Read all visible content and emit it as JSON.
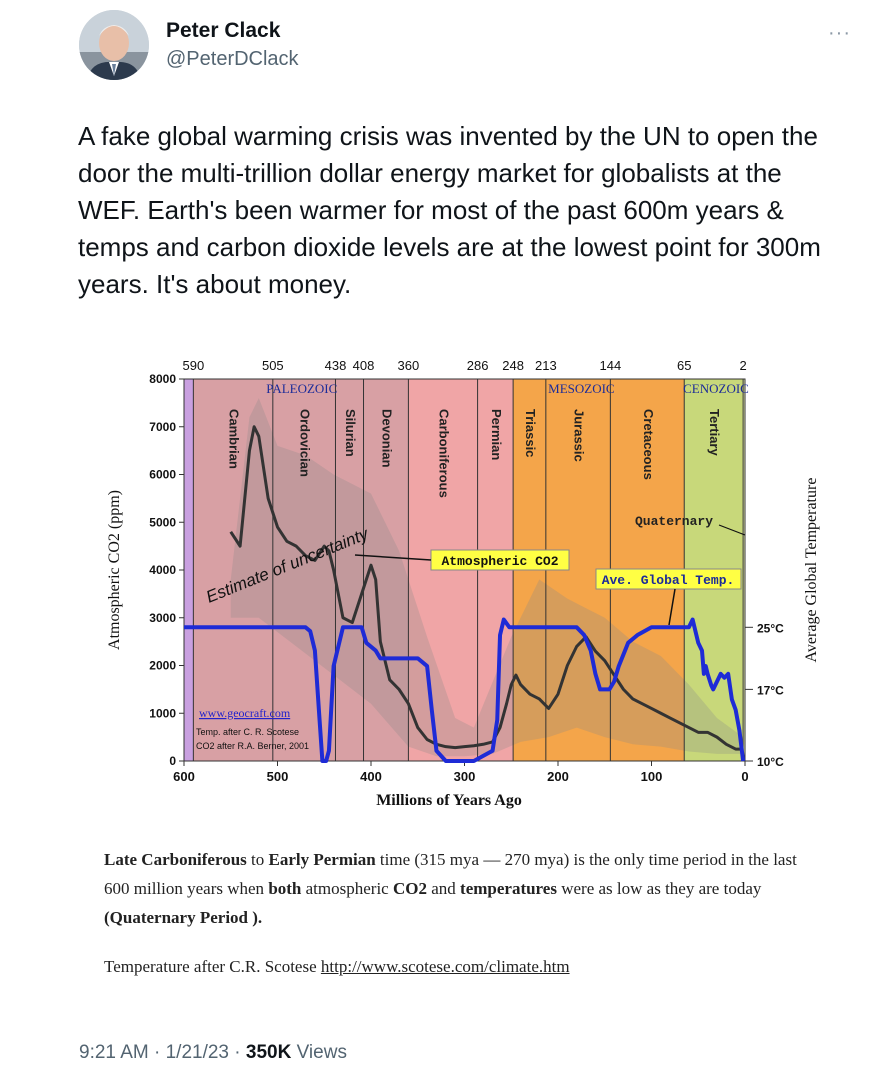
{
  "author": {
    "name": "Peter Clack",
    "handle": "@PeterDClack"
  },
  "more_label": "···",
  "tweet": {
    "text": "A fake global warming crisis was invented by the UN to open the door the multi-trillion dollar energy market for globalists at the WEF. Earth's been warmer for most of the past 600m years & temps and carbon dioxide levels are at the lowest point for 300m years. It's about money."
  },
  "chart_data": {
    "type": "line",
    "xlabel": "Millions of Years Ago",
    "ylabel": "Atmospheric CO2 (ppm)",
    "ylabel_right": "Average Global Temperature",
    "xlim": [
      600,
      0
    ],
    "ylim": [
      0,
      8000
    ],
    "x_ticks": [
      600,
      500,
      400,
      300,
      200,
      100,
      0
    ],
    "y_ticks": [
      0,
      1000,
      2000,
      3000,
      4000,
      5000,
      6000,
      7000,
      8000
    ],
    "top_ticks": [
      "590",
      "505",
      "438",
      "408",
      "360",
      "286",
      "248",
      "213",
      "144",
      "65",
      "2"
    ],
    "right_ticks": [
      "25°C",
      "17°C",
      "10°C"
    ],
    "eras": [
      "PALEOZOIC",
      "MESOZOIC",
      "CENOZOIC"
    ],
    "periods": [
      {
        "name": "Cambrian",
        "start": 590,
        "end": 505,
        "color": "#d8a0a4"
      },
      {
        "name": "Ordovician",
        "start": 505,
        "end": 438,
        "color": "#d8a0a4"
      },
      {
        "name": "Silurian",
        "start": 438,
        "end": 408,
        "color": "#d8a0a4"
      },
      {
        "name": "Devonian",
        "start": 408,
        "end": 360,
        "color": "#d8a0a4"
      },
      {
        "name": "Carboniferous",
        "start": 360,
        "end": 286,
        "color": "#f0a5a6"
      },
      {
        "name": "Permian",
        "start": 286,
        "end": 248,
        "color": "#f0a5a6"
      },
      {
        "name": "Triassic",
        "start": 248,
        "end": 213,
        "color": "#f4a54a"
      },
      {
        "name": "Jurassic",
        "start": 213,
        "end": 144,
        "color": "#f4a54a"
      },
      {
        "name": "Cretaceous",
        "start": 144,
        "end": 65,
        "color": "#f4a54a"
      },
      {
        "name": "Tertiary",
        "start": 65,
        "end": 2,
        "color": "#c8d87a"
      }
    ],
    "annotations": [
      "Estimate of uncertainty",
      "Atmospheric CO2",
      "Ave. Global Temp.",
      "Quaternary"
    ],
    "credits": [
      "www.geocraft.com",
      "Temp. after C. R. Scotese",
      "CO2 after R.A. Berner, 2001"
    ],
    "series": [
      {
        "name": "Atmospheric CO2",
        "color": "#333333",
        "x": [
          550,
          540,
          530,
          525,
          520,
          510,
          500,
          490,
          480,
          470,
          460,
          450,
          445,
          440,
          430,
          420,
          410,
          400,
          395,
          390,
          380,
          370,
          360,
          350,
          340,
          330,
          320,
          310,
          300,
          290,
          280,
          270,
          262,
          255,
          250,
          245,
          240,
          230,
          220,
          210,
          200,
          190,
          180,
          170,
          160,
          150,
          140,
          130,
          120,
          110,
          100,
          90,
          80,
          70,
          60,
          50,
          40,
          30,
          20,
          10,
          2
        ],
        "values": [
          4800,
          4500,
          6500,
          7000,
          6800,
          5500,
          4900,
          4600,
          4500,
          4300,
          4200,
          4500,
          4400,
          4000,
          3000,
          2900,
          3500,
          4100,
          3800,
          2500,
          1700,
          1500,
          1200,
          700,
          450,
          350,
          300,
          280,
          300,
          320,
          350,
          400,
          700,
          1200,
          1600,
          1800,
          1600,
          1400,
          1300,
          1100,
          1400,
          2000,
          2400,
          2600,
          2300,
          2100,
          1800,
          1500,
          1300,
          1200,
          1100,
          1000,
          900,
          800,
          700,
          600,
          600,
          500,
          350,
          250,
          250
        ]
      },
      {
        "name": "Ave. Global Temp.",
        "color": "#1e2bd6",
        "x": [
          600,
          470,
          465,
          460,
          455,
          452,
          448,
          445,
          440,
          430,
          415,
          410,
          405,
          395,
          390,
          380,
          350,
          340,
          335,
          330,
          320,
          310,
          300,
          290,
          280,
          270,
          265,
          262,
          258,
          255,
          252,
          248,
          240,
          190,
          180,
          172,
          165,
          160,
          155,
          145,
          140,
          135,
          125,
          115,
          100,
          70,
          60,
          56,
          54,
          52,
          50,
          46,
          44,
          42,
          40,
          36,
          34,
          30,
          26,
          22,
          18,
          14,
          10,
          6,
          2
        ],
        "values": [
          25,
          25,
          24.5,
          22,
          14,
          10,
          10,
          11,
          20,
          25,
          25,
          25,
          23,
          22,
          21,
          21,
          21,
          20,
          15,
          11,
          10,
          10,
          10,
          10,
          10.5,
          11,
          14,
          24,
          26,
          25.5,
          25,
          25,
          25,
          25,
          25,
          24,
          22,
          19,
          17,
          17,
          18,
          20,
          23,
          24,
          25,
          25,
          25,
          26,
          25,
          24,
          23,
          22,
          19,
          20,
          19,
          17.5,
          17,
          18,
          19,
          18.5,
          19,
          16,
          15,
          13,
          10
        ]
      }
    ]
  },
  "caption": {
    "p1": "Late Carboniferous",
    "p2": " to ",
    "p3": "Early Permian",
    "p4": " time (315 mya — 270 mya) is the only time period in the last 600 million years when ",
    "p5": "both",
    "p6": " atmospheric ",
    "p7": "CO2",
    "p8": " and ",
    "p9": "temperatures",
    "p10": " were as low as they are today ",
    "p11": "(Quaternary Period ).",
    "source_prefix": "Temperature after C.R. Scotese ",
    "source_link": "http://www.scotese.com/climate.htm"
  },
  "meta": {
    "time": "9:21 AM",
    "sep1": " · ",
    "date": "1/21/23",
    "sep2": " · ",
    "views_count": "350K",
    "views_label": " Views"
  }
}
